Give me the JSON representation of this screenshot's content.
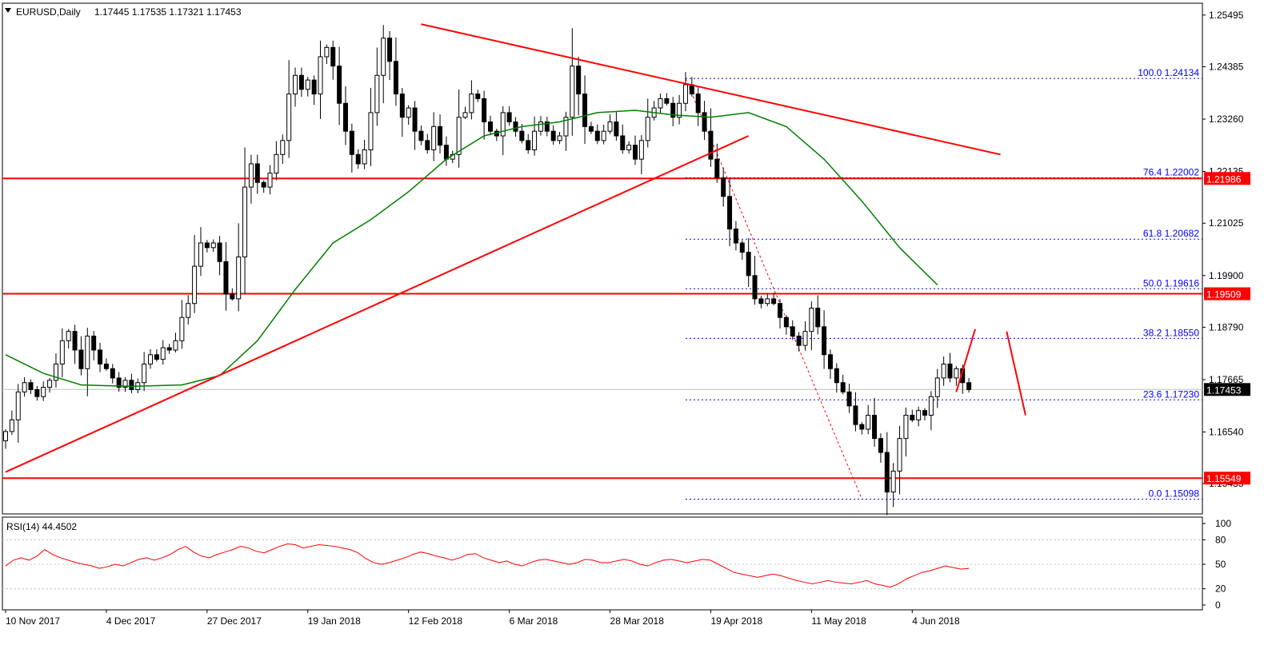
{
  "header": {
    "symbol": "EURUSD,Daily",
    "ohlc": "1.17445 1.17535 1.17321 1.17453"
  },
  "colors": {
    "background": "#ffffff",
    "candle_up_fill": "#ffffff",
    "candle_down_fill": "#000000",
    "candle_outline": "#000000",
    "moving_average": "#008000",
    "trendline": "#ff0000",
    "support_resistance": "#ff0000",
    "fibonacci": "#0000ff",
    "rsi_line": "#ff0000",
    "price_label_bg": "#ff0000",
    "current_price_label_bg": "#000000"
  },
  "chart_data": {
    "type": "candlestick",
    "price_axis": {
      "min": 1.1478,
      "max": 1.2575,
      "ticks": [
        "1.25495",
        "1.24385",
        "1.23260",
        "1.22135",
        "1.21025",
        "1.19900",
        "1.18790",
        "1.17665",
        "1.16540",
        "1.15435"
      ]
    },
    "time_axis": {
      "labels": [
        {
          "text": "10 Nov 2017",
          "bar": 0
        },
        {
          "text": "4 Dec 2017",
          "bar": 16
        },
        {
          "text": "27 Dec 2017",
          "bar": 32
        },
        {
          "text": "19 Jan 2018",
          "bar": 48
        },
        {
          "text": "12 Feb 2018",
          "bar": 64
        },
        {
          "text": "6 Mar 2018",
          "bar": 80
        },
        {
          "text": "28 Mar 2018",
          "bar": 96
        },
        {
          "text": "19 Apr 2018",
          "bar": 112
        },
        {
          "text": "11 May 2018",
          "bar": 128
        },
        {
          "text": "4 Jun 2018",
          "bar": 144
        }
      ]
    },
    "closes": [
      1.1655,
      1.168,
      1.174,
      1.176,
      1.1745,
      1.173,
      1.175,
      1.1765,
      1.18,
      1.185,
      1.187,
      1.183,
      1.179,
      1.186,
      1.183,
      1.18,
      1.179,
      1.177,
      1.175,
      1.1765,
      1.1745,
      1.176,
      1.18,
      1.182,
      1.181,
      1.1835,
      1.183,
      1.185,
      1.19,
      1.193,
      1.201,
      1.206,
      1.205,
      1.206,
      1.202,
      1.195,
      1.194,
      1.203,
      1.218,
      1.223,
      1.219,
      1.218,
      1.221,
      1.225,
      1.228,
      1.238,
      1.242,
      1.239,
      1.241,
      1.238,
      1.246,
      1.248,
      1.244,
      1.236,
      1.23,
      1.225,
      1.223,
      1.226,
      1.234,
      1.242,
      1.25,
      1.245,
      1.238,
      1.233,
      1.235,
      1.23,
      1.228,
      1.226,
      1.231,
      1.227,
      1.224,
      1.225,
      1.233,
      1.234,
      1.238,
      1.237,
      1.232,
      1.23,
      1.229,
      1.234,
      1.232,
      1.23,
      1.228,
      1.226,
      1.23,
      1.232,
      1.23,
      1.228,
      1.229,
      1.233,
      1.244,
      1.238,
      1.231,
      1.23,
      1.228,
      1.23,
      1.232,
      1.229,
      1.226,
      1.227,
      1.224,
      1.228,
      1.233,
      1.235,
      1.237,
      1.236,
      1.233,
      1.236,
      1.24,
      1.238,
      1.234,
      1.23,
      1.224,
      1.22,
      1.216,
      1.209,
      1.206,
      1.204,
      1.199,
      1.194,
      1.193,
      1.194,
      1.193,
      1.19,
      1.188,
      1.186,
      1.184,
      1.187,
      1.192,
      1.188,
      1.182,
      1.179,
      1.176,
      1.174,
      1.171,
      1.167,
      1.166,
      1.169,
      1.164,
      1.161,
      1.1525,
      1.157,
      1.164,
      1.169,
      1.168,
      1.17,
      1.169,
      1.173,
      1.177,
      1.18,
      1.177,
      1.179,
      1.176,
      1.1745
    ],
    "current_price": 1.17453,
    "moving_average": [
      [
        0,
        1.182
      ],
      [
        6,
        1.178
      ],
      [
        12,
        1.1755
      ],
      [
        20,
        1.1752
      ],
      [
        28,
        1.1755
      ],
      [
        34,
        1.1775
      ],
      [
        40,
        1.185
      ],
      [
        46,
        1.196
      ],
      [
        52,
        1.206
      ],
      [
        58,
        1.211
      ],
      [
        64,
        1.217
      ],
      [
        70,
        1.224
      ],
      [
        76,
        1.229
      ],
      [
        82,
        1.231
      ],
      [
        88,
        1.232
      ],
      [
        94,
        1.234
      ],
      [
        100,
        1.2345
      ],
      [
        106,
        1.2335
      ],
      [
        112,
        1.233
      ],
      [
        118,
        1.234
      ],
      [
        124,
        1.231
      ],
      [
        130,
        1.224
      ],
      [
        136,
        1.215
      ],
      [
        142,
        1.205
      ],
      [
        148,
        1.197
      ]
    ],
    "trendlines": [
      {
        "from": [
          0,
          1.1568
        ],
        "to": [
          118,
          1.229
        ]
      },
      {
        "from": [
          66,
          1.253
        ],
        "to": [
          158,
          1.225
        ]
      }
    ],
    "fib_guide": {
      "from": [
        108,
        1.2413
      ],
      "to": [
        136,
        1.151
      ]
    },
    "horizontal_levels": [
      "1.21986",
      "1.19509",
      "1.15549"
    ],
    "fibonacci": [
      {
        "label": "100.0 1.24134",
        "price": 1.24134
      },
      {
        "label": "76.4 1.22002",
        "price": 1.22002
      },
      {
        "label": "61.8 1.20682",
        "price": 1.20682
      },
      {
        "label": "50.0 1.19616",
        "price": 1.19616
      },
      {
        "label": "38.2 1.18550",
        "price": 1.1855
      },
      {
        "label": "23.6 1.17230",
        "price": 1.1723
      },
      {
        "label": "0.0 1.15098",
        "price": 1.15098
      }
    ],
    "forecast_arrows": [
      {
        "from": [
          151,
          1.174
        ],
        "to": [
          154,
          1.1875
        ]
      },
      {
        "from": [
          159,
          1.187
        ],
        "to": [
          162,
          1.169
        ]
      }
    ],
    "rsi": {
      "label": "RSI(14) 44.4502",
      "min": 0,
      "max": 100,
      "ticks": [
        "100",
        "80",
        "50",
        "20",
        "0"
      ],
      "levels": [
        80,
        50,
        20
      ],
      "values": [
        48,
        55,
        58,
        55,
        60,
        68,
        62,
        58,
        55,
        52,
        50,
        48,
        45,
        47,
        50,
        48,
        52,
        56,
        58,
        55,
        58,
        62,
        68,
        72,
        65,
        60,
        58,
        62,
        65,
        68,
        72,
        70,
        66,
        64,
        68,
        72,
        75,
        74,
        70,
        72,
        74,
        73,
        72,
        70,
        68,
        64,
        57,
        52,
        50,
        52,
        55,
        58,
        62,
        65,
        63,
        60,
        58,
        55,
        58,
        62,
        63,
        58,
        55,
        52,
        54,
        50,
        48,
        52,
        55,
        56,
        54,
        52,
        50,
        52,
        56,
        55,
        52,
        52,
        54,
        56,
        54,
        50,
        48,
        52,
        55,
        56,
        54,
        52,
        54,
        56,
        55,
        50,
        45,
        40,
        38,
        36,
        34,
        36,
        38,
        36,
        33,
        30,
        28,
        26,
        28,
        30,
        28,
        27,
        26,
        28,
        30,
        26,
        24,
        22,
        26,
        32,
        36,
        40,
        42,
        45,
        48,
        46,
        44,
        45
      ],
      "value_label": "44.4502"
    }
  }
}
